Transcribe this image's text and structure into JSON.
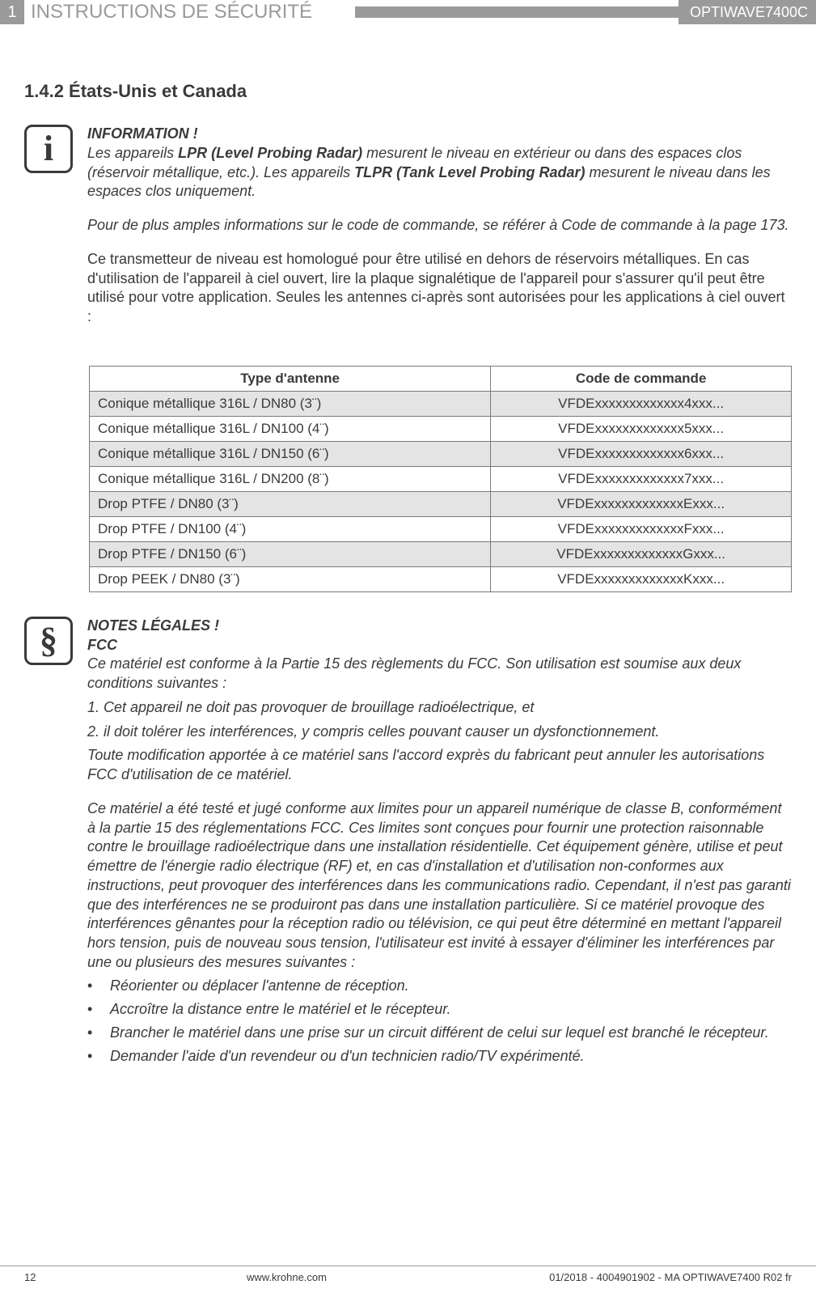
{
  "header": {
    "chapter_num": "1",
    "chapter_title": "INSTRUCTIONS DE SÉCURITÉ",
    "product_code": "OPTIWAVE7400C"
  },
  "section": {
    "number_title": "1.4.2  États-Unis et Canada"
  },
  "info_block": {
    "heading": "INFORMATION !",
    "p1_a": "Les appareils ",
    "p1_lpr": "LPR (Level Probing Radar)",
    "p1_b": " mesurent le niveau en extérieur ou dans des espaces clos (réservoir métallique, etc.). Les appareils ",
    "p1_tlpr": "TLPR (Tank Level Probing Radar)",
    "p1_c": " mesurent le niveau dans les espaces clos uniquement.",
    "p2": "Pour de plus amples informations sur le code de commande, se référer à Code de commande à la page 173.",
    "p3": "Ce transmetteur de niveau est homologué pour être utilisé en dehors de réservoirs métalliques. En cas d'utilisation de l'appareil à ciel ouvert, lire la plaque signalétique de l'appareil pour s'assurer qu'il peut être utilisé pour votre application. Seules les antennes ci-après sont autorisées pour les applications à ciel ouvert :"
  },
  "table": {
    "headers": {
      "type": "Type d'antenne",
      "code": "Code de commande"
    },
    "rows": [
      {
        "type": "Conique métallique 316L / DN80 (3¨)",
        "code": "VFDExxxxxxxxxxxxx4xxx...",
        "shade": true
      },
      {
        "type": "Conique métallique 316L / DN100 (4¨)",
        "code": "VFDExxxxxxxxxxxxx5xxx...",
        "shade": false
      },
      {
        "type": "Conique métallique 316L / DN150 (6¨)",
        "code": "VFDExxxxxxxxxxxxx6xxx...",
        "shade": true
      },
      {
        "type": "Conique métallique 316L / DN200 (8¨)",
        "code": "VFDExxxxxxxxxxxxx7xxx...",
        "shade": false
      },
      {
        "type": "Drop PTFE / DN80 (3¨)",
        "code": "VFDExxxxxxxxxxxxxExxx...",
        "shade": true
      },
      {
        "type": "Drop PTFE / DN100 (4¨)",
        "code": "VFDExxxxxxxxxxxxxFxxx...",
        "shade": false
      },
      {
        "type": "Drop PTFE / DN150 (6¨)",
        "code": "VFDExxxxxxxxxxxxxGxxx...",
        "shade": true
      },
      {
        "type": "Drop PEEK / DN80 (3¨)",
        "code": "VFDExxxxxxxxxxxxxKxxx...",
        "shade": false
      }
    ]
  },
  "legal_block": {
    "heading": "NOTES LÉGALES !",
    "subhead": "FCC",
    "p1": "Ce matériel est conforme à la Partie 15 des règlements du FCC. Son utilisation est soumise aux deux conditions suivantes :",
    "p2": "1. Cet appareil ne doit pas provoquer de brouillage radioélectrique, et",
    "p3": "2. il doit tolérer les interférences, y compris celles pouvant causer un dysfonctionnement.",
    "p4": "Toute modification apportée à ce matériel sans l'accord exprès du fabricant peut annuler les autorisations FCC d'utilisation de ce matériel.",
    "p5": "Ce matériel a été testé et jugé conforme aux limites pour un appareil numérique de classe  B, conformément à la partie 15 des réglementations FCC. Ces limites sont conçues pour fournir une protection raisonnable contre le brouillage radioélectrique dans une installation résidentielle. Cet équipement génère, utilise et peut émettre de l'énergie radio électrique (RF) et, en cas d'installation et d'utilisation non-conformes aux instructions, peut provoquer des interférences dans les communications radio. Cependant, il n'est pas garanti que des interférences ne se produiront pas dans une installation particulière. Si ce matériel provoque des interférences gênantes pour la réception radio ou télévision, ce qui peut être déterminé en mettant l'appareil hors tension, puis de nouveau sous tension, l'utilisateur est invité à essayer d'éliminer les interférences par une ou plusieurs des mesures suivantes :",
    "bullets": [
      "Réorienter ou déplacer l'antenne de réception.",
      "Accroître la distance entre le matériel et le récepteur.",
      "Brancher le matériel dans une prise sur un circuit différent de celui sur lequel est branché le récepteur.",
      "Demander l'aide d'un revendeur ou d'un technicien radio/TV expérimenté."
    ]
  },
  "footer": {
    "page": "12",
    "url": "www.krohne.com",
    "docref": "01/2018 - 4004901902 - MA OPTIWAVE7400 R02 fr"
  }
}
